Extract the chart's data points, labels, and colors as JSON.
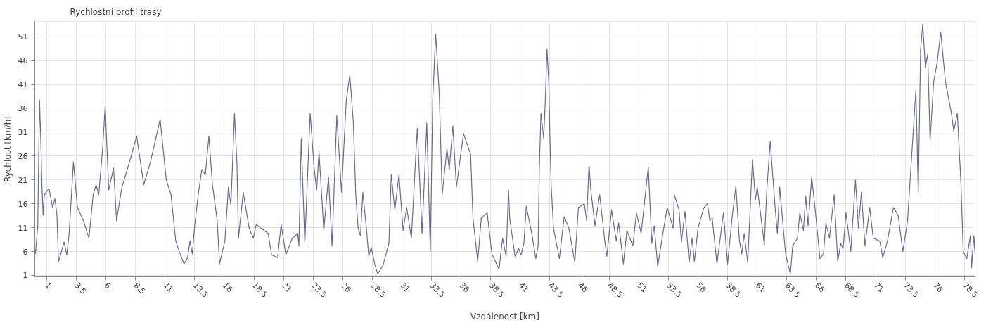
{
  "chart_data": {
    "type": "line",
    "title": "Rychlostní profil trasy",
    "xlabel": "Vzdálenost [km]",
    "ylabel": "Rychlost [km/h]",
    "xlim": [
      0,
      79.4
    ],
    "ylim": [
      0.7,
      54.2
    ],
    "xticks": [
      1,
      3.5,
      6,
      8.5,
      11,
      13.5,
      16,
      18.5,
      21,
      23.5,
      26,
      28.5,
      31,
      33.5,
      36,
      38.5,
      41,
      43.5,
      46,
      48.5,
      51,
      53.5,
      56,
      58.5,
      61,
      63.5,
      66,
      68.5,
      71,
      73.5,
      76,
      78.5
    ],
    "yticks": [
      1,
      6,
      11,
      16,
      21,
      26,
      31,
      36,
      41,
      46,
      51
    ],
    "grid": true,
    "marker": "none",
    "line_style": "solid",
    "series": [
      {
        "color": "#6b6b94",
        "x": [
          0.05,
          0.25,
          0.3,
          0.4,
          0.5,
          0.6,
          0.7,
          0.8,
          1.2,
          1.5,
          1.7,
          1.87,
          2.0,
          2.2,
          2.47,
          2.7,
          2.9,
          3.26,
          3.6,
          4.1,
          4.57,
          4.93,
          5.17,
          5.4,
          5.74,
          5.94,
          6.24,
          6.65,
          6.9,
          7.35,
          8.16,
          8.6,
          9.2,
          9.77,
          10.58,
          11.1,
          11.5,
          11.9,
          12.2,
          12.6,
          12.9,
          13.1,
          13.3,
          13.5,
          13.8,
          14.1,
          14.4,
          14.7,
          15.0,
          15.4,
          15.6,
          16.05,
          16.35,
          16.56,
          16.86,
          17.07,
          17.2,
          17.6,
          18.1,
          18.45,
          18.7,
          19.1,
          19.7,
          20.0,
          20.5,
          20.8,
          21.2,
          21.75,
          22.2,
          22.3,
          22.5,
          22.8,
          23.25,
          23.6,
          23.8,
          24.0,
          24.3,
          24.4,
          24.8,
          25.1,
          25.5,
          25.9,
          26.3,
          26.6,
          26.9,
          27.1,
          27.3,
          27.5,
          27.7,
          28.0,
          28.2,
          28.4,
          28.7,
          28.95,
          29.4,
          29.9,
          30.1,
          30.4,
          30.75,
          31.1,
          31.4,
          31.8,
          32.2,
          32.3,
          32.7,
          33.1,
          33.4,
          33.6,
          33.85,
          34.15,
          34.4,
          34.8,
          35.0,
          35.3,
          35.6,
          36.2,
          36.8,
          37.0,
          37.4,
          37.7,
          38.2,
          38.6,
          39.2,
          39.5,
          39.8,
          40.0,
          40.1,
          40.55,
          40.86,
          41.06,
          41.3,
          41.5,
          42.0,
          42.3,
          42.5,
          42.6,
          42.74,
          42.97,
          43.1,
          43.25,
          43.4,
          43.5,
          43.6,
          43.8,
          44.3,
          44.7,
          45.1,
          45.6,
          45.9,
          46.4,
          46.6,
          46.8,
          46.95,
          47.3,
          47.7,
          48.1,
          48.3,
          48.7,
          49.1,
          49.3,
          49.7,
          50.0,
          50.5,
          50.8,
          51.2,
          51.8,
          52.1,
          52.3,
          52.6,
          53.0,
          53.4,
          53.9,
          54.0,
          54.4,
          54.6,
          54.9,
          55.25,
          55.5,
          55.7,
          56.0,
          56.5,
          56.8,
          57.0,
          57.2,
          57.6,
          58.15,
          58.5,
          58.9,
          59.2,
          59.5,
          59.7,
          59.9,
          60.2,
          60.6,
          60.85,
          61.0,
          61.3,
          61.6,
          61.8,
          62.1,
          62.5,
          62.7,
          62.9,
          63.2,
          63.4,
          63.8,
          64.0,
          64.4,
          64.6,
          64.9,
          65.1,
          65.3,
          65.6,
          65.9,
          66.3,
          66.6,
          66.8,
          67.1,
          67.5,
          67.8,
          68.05,
          68.25,
          68.5,
          68.9,
          69.3,
          69.55,
          69.8,
          70.1,
          70.5,
          70.8,
          71.35,
          71.6,
          72.0,
          72.5,
          72.9,
          73.3,
          73.7,
          74.0,
          74.4,
          74.6,
          74.8,
          74.98,
          75.2,
          75.4,
          75.6,
          75.9,
          76.2,
          76.5,
          76.9,
          77.4,
          77.6,
          77.9,
          78.2,
          78.4,
          78.7,
          79.0,
          79.1,
          79.3,
          79.4
        ],
        "values": [
          5.5,
          11.4,
          21,
          37.7,
          30,
          20,
          13.6,
          17.9,
          19.2,
          15.2,
          17.1,
          13.6,
          3.9,
          5.5,
          8,
          5.3,
          9.8,
          24.8,
          15.2,
          12.5,
          8.8,
          17.9,
          20,
          17.9,
          28,
          36.6,
          18.9,
          23.5,
          12.5,
          19.4,
          26.2,
          30.2,
          20,
          24.8,
          33.7,
          21,
          17.9,
          8.2,
          6,
          3.4,
          4.7,
          8.2,
          5.5,
          11.4,
          17.9,
          23.2,
          22.1,
          30.2,
          20,
          12.5,
          3.4,
          8.2,
          19.5,
          15.7,
          35,
          24.3,
          8.8,
          18.4,
          10.9,
          8.8,
          11.7,
          10.9,
          9.8,
          5.3,
          4.7,
          11.7,
          5.3,
          8.8,
          9.8,
          7.2,
          29.7,
          7.7,
          35,
          23.2,
          18.9,
          26.9,
          14.7,
          10.4,
          21.6,
          7.2,
          34.5,
          18.4,
          37.7,
          43,
          32.9,
          17.9,
          10.9,
          9.3,
          18.4,
          10.9,
          5,
          6.9,
          3.4,
          1.3,
          3.1,
          7.7,
          22.1,
          14.7,
          22.1,
          10.4,
          15.2,
          8.8,
          27.5,
          31.8,
          9.8,
          32.9,
          6,
          37.7,
          51.6,
          39.3,
          17.9,
          27.5,
          23.2,
          32.3,
          19.5,
          30.7,
          26.4,
          13,
          3.9,
          13,
          14.1,
          5.5,
          2.3,
          8.8,
          5,
          18.9,
          13,
          5,
          6.6,
          5.3,
          7.7,
          15.5,
          9.3,
          4.5,
          7.2,
          23.2,
          35,
          29.7,
          37.2,
          48.4,
          41.5,
          29.7,
          20,
          10.9,
          4.5,
          13.3,
          10.9,
          3.7,
          15.2,
          16,
          12.5,
          24.3,
          18.9,
          11.4,
          17.9,
          8.8,
          5,
          14.7,
          8.2,
          12,
          3.4,
          10.4,
          7.2,
          14.1,
          9.8,
          23.7,
          7.7,
          11.4,
          2.9,
          9.3,
          15.2,
          10.9,
          17.9,
          14.7,
          8,
          14.4,
          3.7,
          8.8,
          3.9,
          10.9,
          15.2,
          16,
          12.5,
          13,
          3.4,
          14.1,
          3.4,
          13.6,
          19.7,
          8.2,
          5.5,
          9.8,
          3.7,
          25.3,
          16.8,
          19.5,
          13.6,
          7.4,
          18.4,
          29.1,
          15.7,
          9.8,
          19.5,
          10.9,
          5.5,
          1.3,
          7.2,
          8.8,
          14.1,
          10.4,
          17.6,
          11.4,
          21.6,
          14.7,
          4.5,
          5.5,
          12,
          8.8,
          17.9,
          3.9,
          7.7,
          6.6,
          14.1,
          6,
          21,
          10.9,
          18.4,
          7.2,
          15.2,
          8.8,
          8.2,
          4.7,
          8.2,
          15.2,
          13.6,
          6,
          12.5,
          24.3,
          39.8,
          18.4,
          48.4,
          53.7,
          44.6,
          47.3,
          29.1,
          41.5,
          45.7,
          51.9,
          41.5,
          35,
          31.2,
          35,
          20.5,
          6,
          4.5,
          9.3,
          2.6,
          9.3,
          5.5
        ]
      }
    ]
  }
}
